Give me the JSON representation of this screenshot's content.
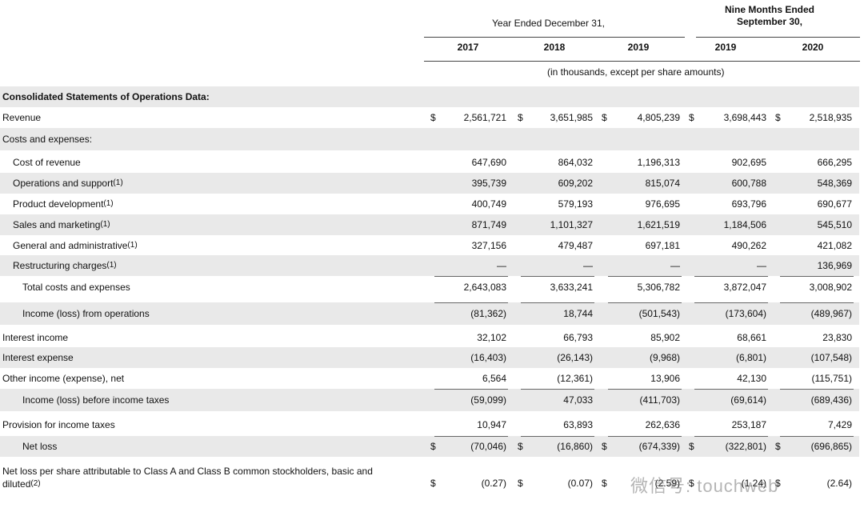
{
  "header": {
    "group1": "Year Ended December 31,",
    "group2_line1": "Nine Months Ended",
    "group2_line2": "September 30,",
    "columns": [
      "2017",
      "2018",
      "2019",
      "2019",
      "2020"
    ],
    "units": "(in thousands, except per share amounts)"
  },
  "currency_symbol": "$",
  "watermark": "微信号: touchweb",
  "table": {
    "rows": [
      {
        "label": "Consolidated Statements of Operations Data:",
        "bold": true,
        "shaded": true,
        "indent": 0
      },
      {
        "label": "Revenue",
        "indent": 0,
        "dollar": true,
        "values": [
          "2,561,721",
          "3,651,985",
          "4,805,239",
          "3,698,443",
          "2,518,935"
        ]
      },
      {
        "label": "Costs and expenses:",
        "shaded": true,
        "indent": 0
      },
      {
        "label": "Cost of revenue",
        "indent": 1,
        "values": [
          "647,690",
          "864,032",
          "1,196,313",
          "902,695",
          "666,295"
        ]
      },
      {
        "label": "Operations and support",
        "note": "(1)",
        "shaded": true,
        "indent": 1,
        "values": [
          "395,739",
          "609,202",
          "815,074",
          "600,788",
          "548,369"
        ]
      },
      {
        "label": "Product development",
        "note": "(1)",
        "indent": 1,
        "values": [
          "400,749",
          "579,193",
          "976,695",
          "693,796",
          "690,677"
        ]
      },
      {
        "label": "Sales and marketing",
        "note": "(1)",
        "shaded": true,
        "indent": 1,
        "values": [
          "871,749",
          "1,101,327",
          "1,621,519",
          "1,184,506",
          "545,510"
        ]
      },
      {
        "label": "General and administrative",
        "note": "(1)",
        "indent": 1,
        "values": [
          "327,156",
          "479,487",
          "697,181",
          "490,262",
          "421,082"
        ]
      },
      {
        "label": "Restructuring charges",
        "note": "(1)",
        "shaded": true,
        "indent": 1,
        "values": [
          "—",
          "—",
          "—",
          "—",
          "136,969"
        ]
      },
      {
        "label": "Total costs and expenses",
        "indent": 2,
        "total": true,
        "values": [
          "2,643,083",
          "3,633,241",
          "5,306,782",
          "3,872,047",
          "3,008,902"
        ]
      },
      {
        "label": "Income (loss) from operations",
        "shaded": true,
        "indent": 2,
        "total": true,
        "values": [
          "(81,362)",
          "18,744",
          "(501,543)",
          "(173,604)",
          "(489,967)"
        ]
      },
      {
        "label": "Interest income",
        "indent": 0,
        "values": [
          "32,102",
          "66,793",
          "85,902",
          "68,661",
          "23,830"
        ]
      },
      {
        "label": "Interest expense",
        "shaded": true,
        "indent": 0,
        "values": [
          "(16,403)",
          "(26,143)",
          "(9,968)",
          "(6,801)",
          "(107,548)"
        ]
      },
      {
        "label": "Other income (expense), net",
        "indent": 0,
        "values": [
          "6,564",
          "(12,361)",
          "13,906",
          "42,130",
          "(115,751)"
        ]
      },
      {
        "label": "Income (loss) before income taxes",
        "shaded": true,
        "indent": 2,
        "total": true,
        "values": [
          "(59,099)",
          "47,033",
          "(411,703)",
          "(69,614)",
          "(689,436)"
        ]
      },
      {
        "label": "Provision for income taxes",
        "indent": 0,
        "values": [
          "10,947",
          "63,893",
          "262,636",
          "253,187",
          "7,429"
        ]
      },
      {
        "label": "Net loss",
        "shaded": true,
        "indent": 2,
        "dollar": true,
        "total": true,
        "values": [
          "(70,046)",
          "(16,860)",
          "(674,339)",
          "(322,801)",
          "(696,865)"
        ]
      },
      {
        "label": "Net loss per share attributable to Class A and Class B common stockholders, basic and diluted",
        "note": "(2)",
        "indent": 0,
        "dollar": true,
        "values": [
          "(0.27)",
          "(0.07)",
          "(2.59)",
          "(1.24)",
          "(2.64)"
        ]
      }
    ]
  }
}
